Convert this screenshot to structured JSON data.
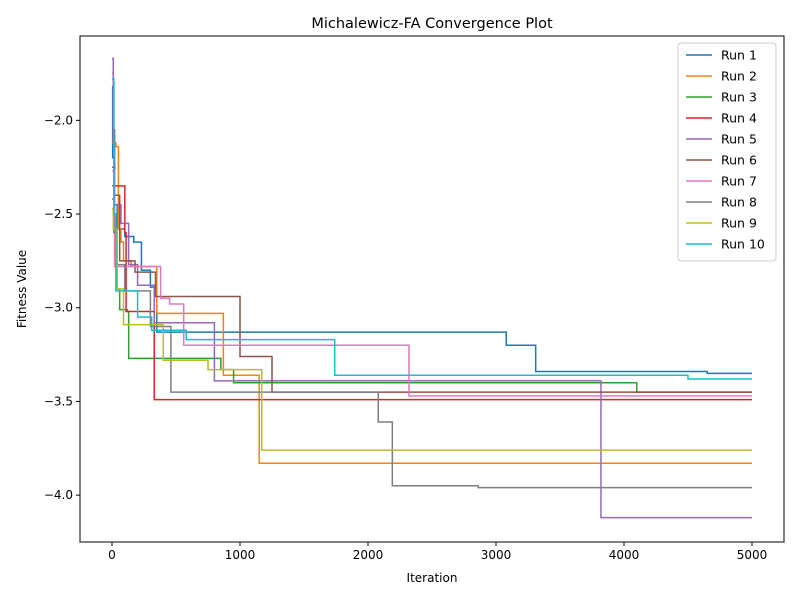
{
  "chart_data": {
    "type": "line",
    "title": "Michalewicz-FA Convergence Plot",
    "xlabel": "Iteration",
    "ylabel": "Fitness Value",
    "xlim": [
      -250,
      5250
    ],
    "ylim": [
      -4.25,
      -1.55
    ],
    "xticks": [
      0,
      1000,
      2000,
      3000,
      4000,
      5000
    ],
    "xtick_labels": [
      "0",
      "1000",
      "2000",
      "3000",
      "4000",
      "5000"
    ],
    "yticks": [
      -2.0,
      -2.5,
      -3.0,
      -3.5,
      -4.0
    ],
    "ytick_labels": [
      "−2.0",
      "−2.5",
      "−3.0",
      "−3.5",
      "−4.0"
    ],
    "grid": false,
    "legend_position": "top-right",
    "step": "post",
    "series": [
      {
        "name": "Run 1",
        "color": "#1f77b4",
        "points": [
          [
            0,
            -1.82
          ],
          [
            5,
            -2.2
          ],
          [
            15,
            -2.45
          ],
          [
            40,
            -2.58
          ],
          [
            100,
            -2.62
          ],
          [
            170,
            -2.65
          ],
          [
            230,
            -2.8
          ],
          [
            300,
            -2.89
          ],
          [
            350,
            -3.13
          ],
          [
            3080,
            -3.2
          ],
          [
            3310,
            -3.34
          ],
          [
            4650,
            -3.35
          ],
          [
            5000,
            -3.35
          ]
        ]
      },
      {
        "name": "Run 2",
        "color": "#ff7f0e",
        "points": [
          [
            0,
            -1.75
          ],
          [
            10,
            -2.12
          ],
          [
            30,
            -2.14
          ],
          [
            50,
            -2.58
          ],
          [
            70,
            -2.65
          ],
          [
            90,
            -2.75
          ],
          [
            150,
            -2.78
          ],
          [
            350,
            -3.03
          ],
          [
            870,
            -3.36
          ],
          [
            1150,
            -3.83
          ],
          [
            5000,
            -3.83
          ]
        ]
      },
      {
        "name": "Run 3",
        "color": "#2ca02c",
        "points": [
          [
            0,
            -2.35
          ],
          [
            15,
            -2.6
          ],
          [
            40,
            -2.9
          ],
          [
            60,
            -3.01
          ],
          [
            120,
            -3.02
          ],
          [
            130,
            -3.27
          ],
          [
            850,
            -3.33
          ],
          [
            950,
            -3.4
          ],
          [
            4100,
            -3.45
          ],
          [
            5000,
            -3.45
          ]
        ]
      },
      {
        "name": "Run 4",
        "color": "#d62728",
        "points": [
          [
            0,
            -2.05
          ],
          [
            20,
            -2.35
          ],
          [
            100,
            -2.6
          ],
          [
            110,
            -3.02
          ],
          [
            330,
            -3.49
          ],
          [
            4800,
            -3.49
          ],
          [
            5000,
            -3.49
          ]
        ]
      },
      {
        "name": "Run 5",
        "color": "#9467bd",
        "points": [
          [
            0,
            -1.67
          ],
          [
            10,
            -2.1
          ],
          [
            20,
            -2.45
          ],
          [
            70,
            -2.55
          ],
          [
            130,
            -2.77
          ],
          [
            200,
            -2.88
          ],
          [
            330,
            -3.08
          ],
          [
            800,
            -3.39
          ],
          [
            3820,
            -4.12
          ],
          [
            5000,
            -4.12
          ]
        ]
      },
      {
        "name": "Run 6",
        "color": "#8c564b",
        "points": [
          [
            0,
            -2.25
          ],
          [
            20,
            -2.4
          ],
          [
            60,
            -2.75
          ],
          [
            180,
            -2.81
          ],
          [
            340,
            -2.94
          ],
          [
            1000,
            -3.26
          ],
          [
            1250,
            -3.45
          ],
          [
            5000,
            -3.45
          ]
        ]
      },
      {
        "name": "Run 7",
        "color": "#e377c2",
        "points": [
          [
            0,
            -2.27
          ],
          [
            20,
            -2.78
          ],
          [
            380,
            -2.95
          ],
          [
            450,
            -2.98
          ],
          [
            560,
            -3.2
          ],
          [
            2320,
            -3.47
          ],
          [
            5000,
            -3.47
          ]
        ]
      },
      {
        "name": "Run 8",
        "color": "#7f7f7f",
        "points": [
          [
            0,
            -2.42
          ],
          [
            15,
            -2.6
          ],
          [
            40,
            -2.77
          ],
          [
            100,
            -2.91
          ],
          [
            300,
            -3.1
          ],
          [
            460,
            -3.45
          ],
          [
            2080,
            -3.61
          ],
          [
            2190,
            -3.95
          ],
          [
            2860,
            -3.96
          ],
          [
            5000,
            -3.96
          ]
        ]
      },
      {
        "name": "Run 9",
        "color": "#bcbd22",
        "points": [
          [
            0,
            -2.47
          ],
          [
            10,
            -2.58
          ],
          [
            40,
            -2.9
          ],
          [
            90,
            -3.09
          ],
          [
            400,
            -3.28
          ],
          [
            750,
            -3.33
          ],
          [
            1170,
            -3.76
          ],
          [
            5000,
            -3.76
          ]
        ]
      },
      {
        "name": "Run 10",
        "color": "#17becf",
        "points": [
          [
            0,
            -1.78
          ],
          [
            15,
            -2.5
          ],
          [
            30,
            -2.91
          ],
          [
            200,
            -3.05
          ],
          [
            310,
            -3.12
          ],
          [
            580,
            -3.17
          ],
          [
            1740,
            -3.36
          ],
          [
            4500,
            -3.38
          ],
          [
            5000,
            -3.38
          ]
        ]
      }
    ]
  }
}
